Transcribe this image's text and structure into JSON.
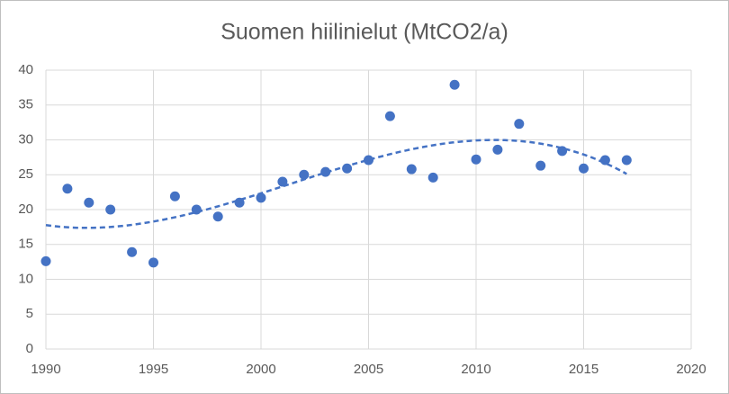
{
  "chart_data": {
    "type": "scatter",
    "title": "Suomen hiilinielut (MtCO2/a)",
    "x": [
      1990,
      1991,
      1992,
      1993,
      1994,
      1995,
      1996,
      1997,
      1998,
      1999,
      2000,
      2001,
      2002,
      2003,
      2004,
      2005,
      2006,
      2007,
      2008,
      2009,
      2010,
      2011,
      2012,
      2013,
      2014,
      2015,
      2016,
      2017
    ],
    "values": [
      12.6,
      23.0,
      21.0,
      20.0,
      13.9,
      12.4,
      21.9,
      20.0,
      19.0,
      21.0,
      21.7,
      24.0,
      25.0,
      25.4,
      25.9,
      27.1,
      33.4,
      25.8,
      24.6,
      37.9,
      27.2,
      28.6,
      32.3,
      26.3,
      28.4,
      25.9,
      27.1,
      27.1
    ],
    "color": "#4472c4",
    "xlim": [
      1990,
      2020
    ],
    "xticks": [
      1990,
      1995,
      2000,
      2005,
      2010,
      2015,
      2020
    ],
    "ylim": [
      0,
      40
    ],
    "yticks": [
      0,
      5,
      10,
      15,
      20,
      25,
      30,
      35,
      40
    ],
    "grid": true,
    "trendline": {
      "type": "polynomial",
      "order": 3
    }
  }
}
